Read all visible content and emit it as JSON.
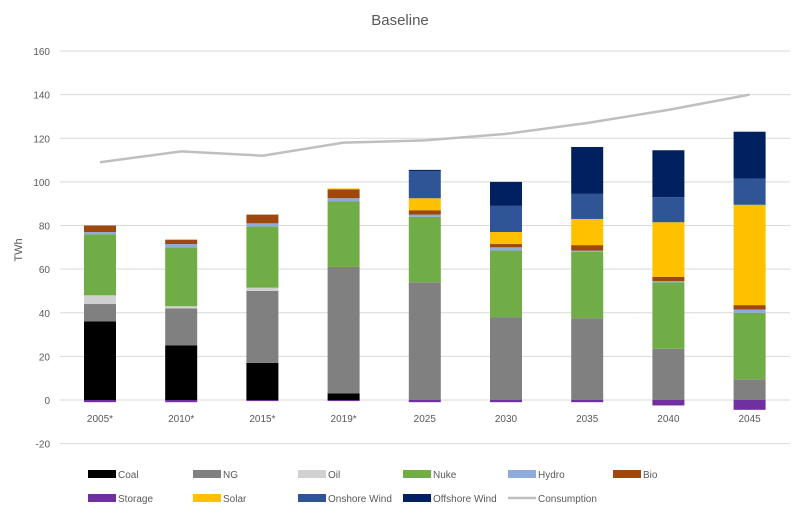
{
  "chart_data": {
    "type": "bar",
    "stacked": true,
    "title": "Baseline",
    "xlabel": "",
    "ylabel": "TWh",
    "ylim": [
      -20,
      160
    ],
    "yticks": [
      -20,
      0,
      20,
      40,
      60,
      80,
      100,
      120,
      140,
      160
    ],
    "grid": true,
    "legend_position": "bottom",
    "categories": [
      "2005*",
      "2010*",
      "2015*",
      "2019*",
      "2025",
      "2030",
      "2035",
      "2040",
      "2045"
    ],
    "series": [
      {
        "name": "Coal",
        "color": "#000000",
        "values": [
          36,
          25,
          17,
          3,
          0,
          0,
          0,
          0,
          0
        ]
      },
      {
        "name": "NG",
        "color": "#808080",
        "values": [
          8,
          17,
          33,
          58,
          54,
          38,
          37.5,
          23.5,
          9.5
        ]
      },
      {
        "name": "Oil",
        "color": "#d0d0d0",
        "values": [
          4,
          1,
          1.5,
          0,
          0,
          0,
          0,
          0,
          0
        ]
      },
      {
        "name": "Nuke",
        "color": "#70ad47",
        "values": [
          28,
          27,
          28,
          30,
          30,
          30.5,
          30.5,
          30.5,
          30.5
        ]
      },
      {
        "name": "Hydro",
        "color": "#8faadc",
        "values": [
          1,
          1.5,
          1.5,
          1.5,
          1,
          1.5,
          0.5,
          0.5,
          1.5
        ]
      },
      {
        "name": "Bio",
        "color": "#9e480e",
        "values": [
          3,
          2,
          4,
          4,
          2,
          1.5,
          2.5,
          2,
          2
        ]
      },
      {
        "name": "Storage",
        "color": "#7030a0",
        "values": [
          -1,
          -1,
          -0.5,
          -0.5,
          -1,
          -1,
          -1,
          -2.5,
          -4.5
        ]
      },
      {
        "name": "Solar",
        "color": "#ffc000",
        "values": [
          0,
          0,
          0,
          0.5,
          5.5,
          5.5,
          12,
          25,
          46
        ]
      },
      {
        "name": "Onshore Wind",
        "color": "#2f5597",
        "values": [
          0,
          0,
          0,
          0,
          12.5,
          12,
          11.5,
          11.5,
          12
        ]
      },
      {
        "name": "Offshore Wind",
        "color": "#002060",
        "values": [
          0,
          0,
          0,
          0,
          0.5,
          11,
          21.5,
          21.5,
          21.5
        ]
      }
    ],
    "line_series": {
      "name": "Consumption",
      "color": "#bfbfbf",
      "values": [
        109,
        114,
        112,
        118,
        119,
        122,
        127,
        133,
        140
      ]
    }
  }
}
